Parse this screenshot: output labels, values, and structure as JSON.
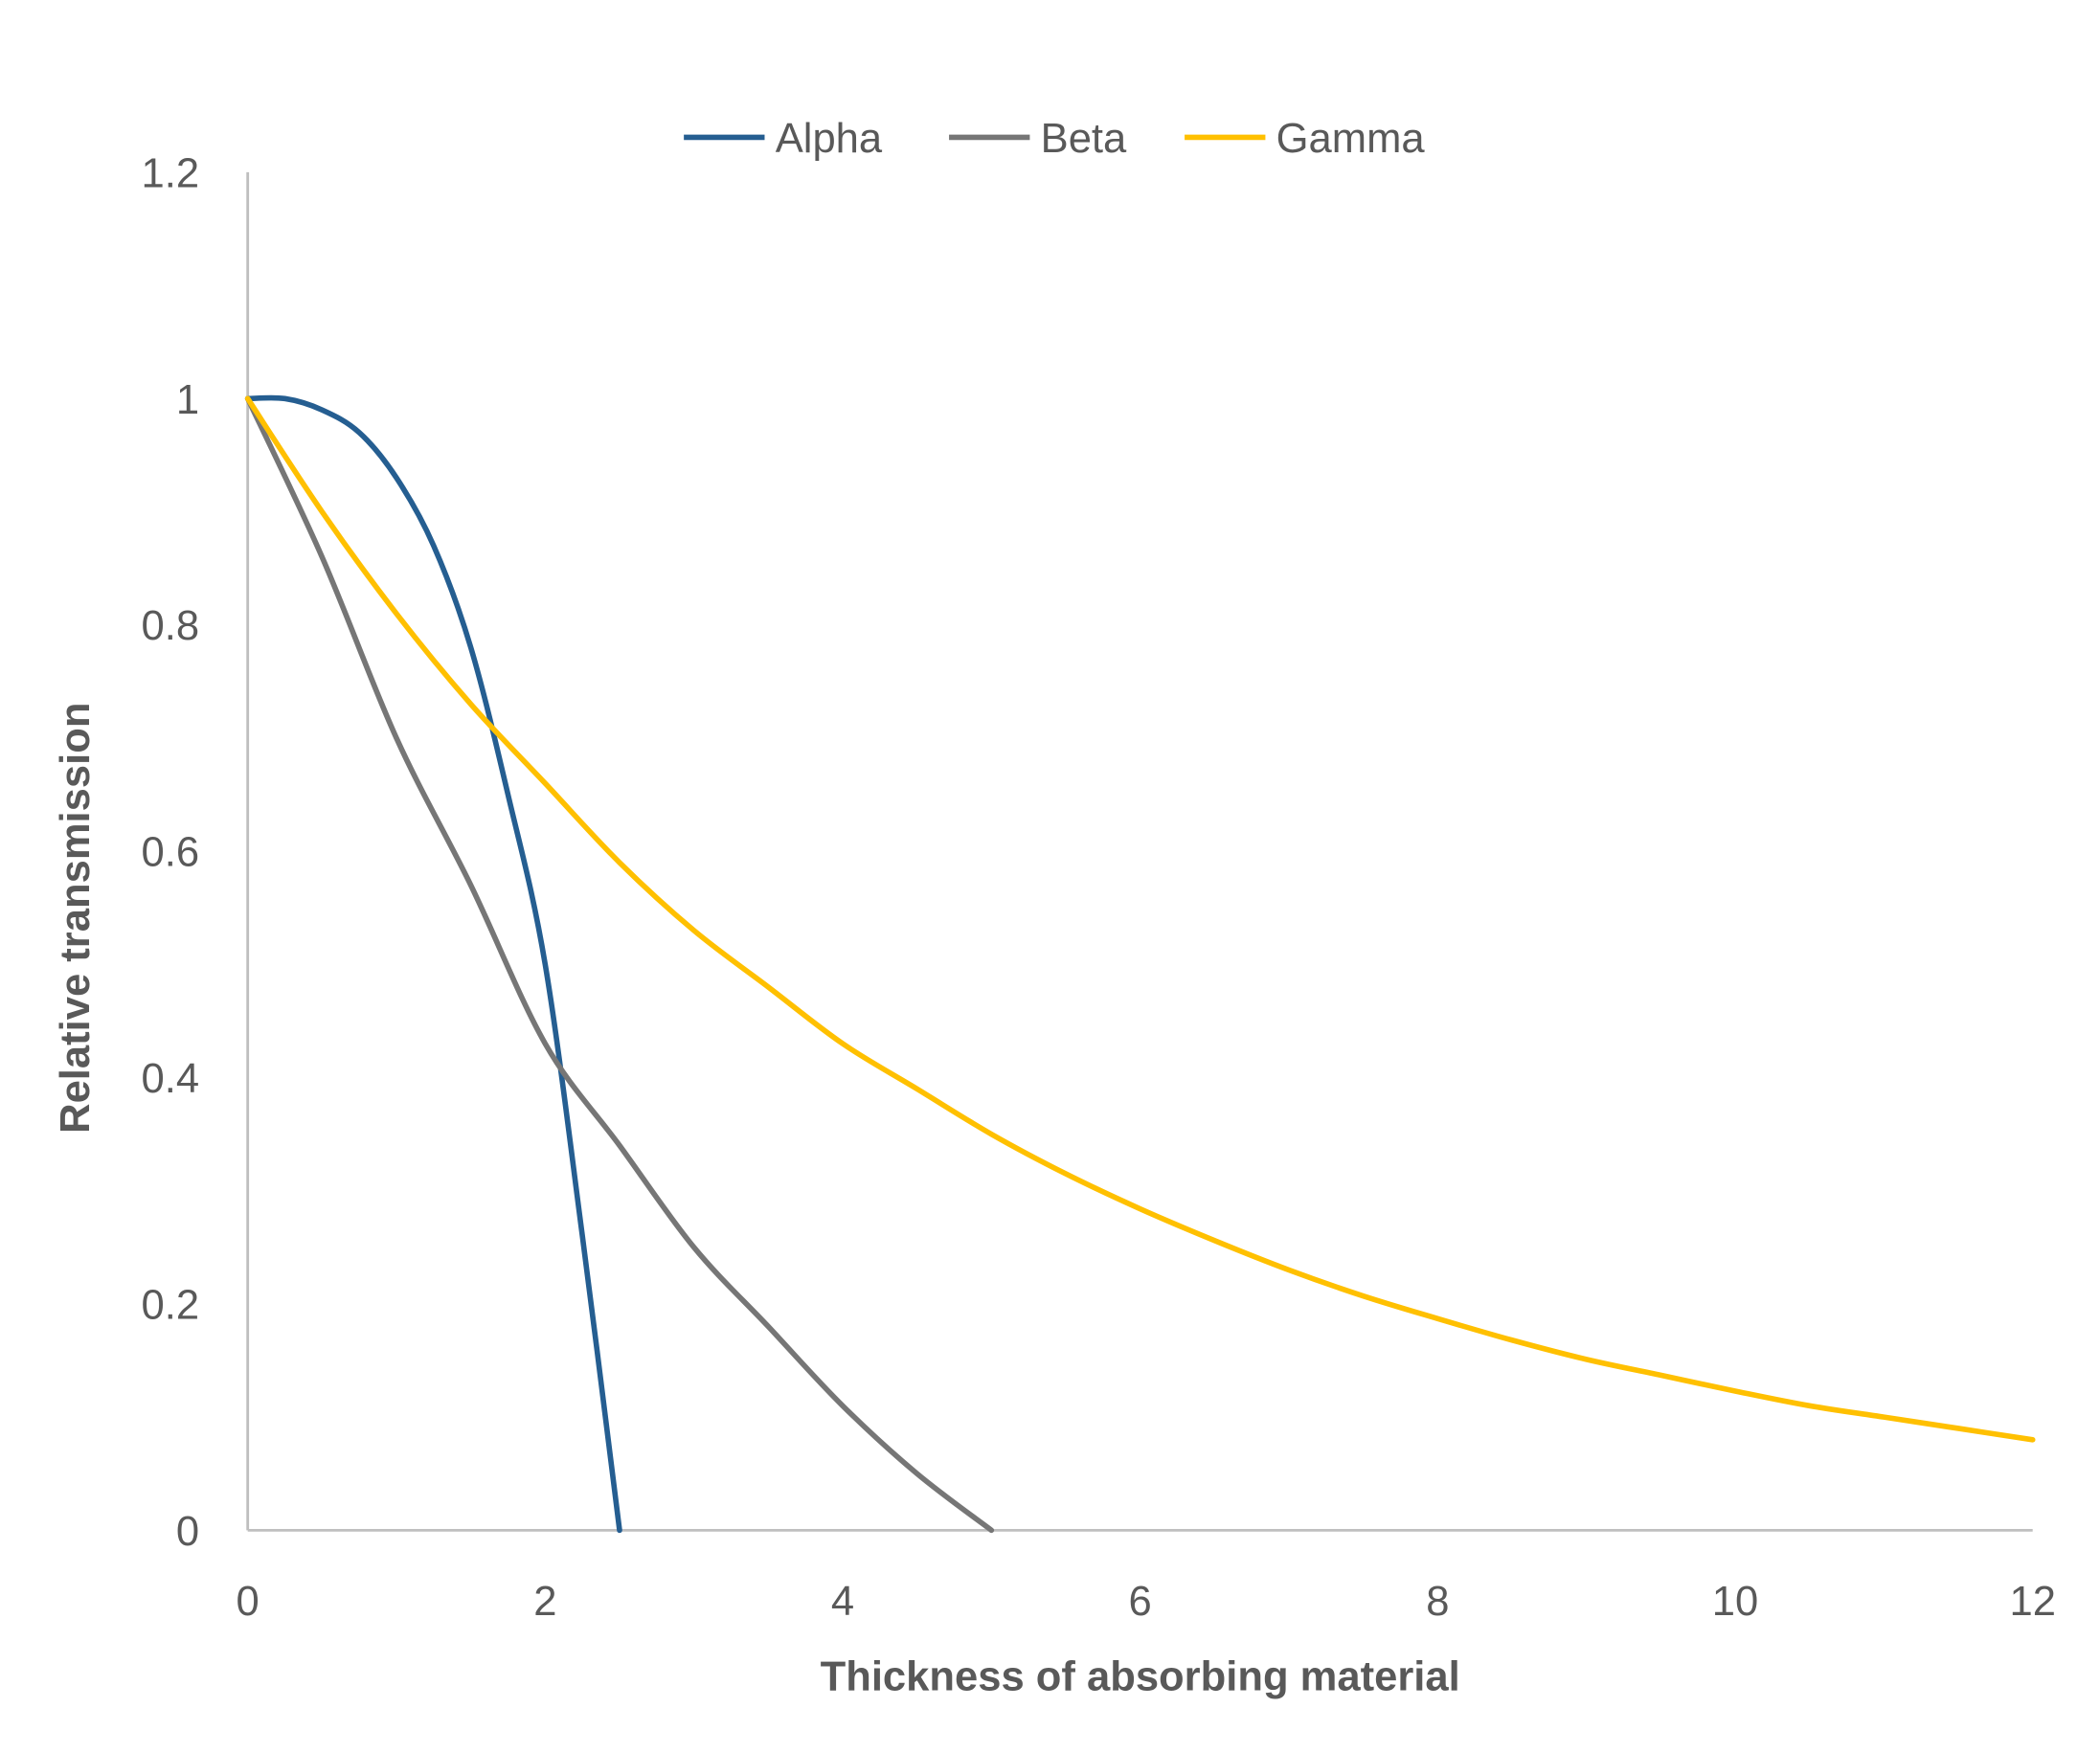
{
  "chart_data": {
    "type": "line",
    "title": "",
    "xlabel": "Thickness of absorbing material",
    "ylabel": "Relative transmission",
    "xlim": [
      0,
      12
    ],
    "ylim": [
      0,
      1.2
    ],
    "xticks": [
      "0",
      "2",
      "4",
      "6",
      "8",
      "10",
      "12"
    ],
    "yticks": [
      "0",
      "0.2",
      "0.4",
      "0.6",
      "0.8",
      "1",
      "1.2"
    ],
    "grid": false,
    "legend": "top",
    "series": [
      {
        "name": "Alpha",
        "color": "#255E91",
        "x": [
          0,
          0.25,
          0.5,
          0.75,
          1,
          1.25,
          1.5,
          1.75,
          2,
          2.25,
          2.5
        ],
        "y": [
          1,
          1,
          0.99,
          0.97,
          0.93,
          0.87,
          0.78,
          0.65,
          0.5,
          0.26,
          0
        ]
      },
      {
        "name": "Beta",
        "color": "#767676",
        "x": [
          0,
          0.5,
          1,
          1.5,
          2,
          2.5,
          3,
          3.5,
          4,
          4.5,
          5
        ],
        "y": [
          1,
          0.86,
          0.7,
          0.57,
          0.43,
          0.34,
          0.25,
          0.18,
          0.11,
          0.05,
          0
        ]
      },
      {
        "name": "Gamma",
        "color": "#FFC000",
        "x": [
          0,
          0.5,
          1,
          1.5,
          2,
          2.5,
          3,
          3.5,
          4,
          4.5,
          5,
          5.5,
          6,
          6.5,
          7,
          7.5,
          8,
          8.5,
          9,
          9.5,
          10,
          10.5,
          11,
          11.5,
          12
        ],
        "y": [
          1,
          0.9,
          0.81,
          0.73,
          0.66,
          0.59,
          0.53,
          0.48,
          0.43,
          0.39,
          0.35,
          0.315,
          0.284,
          0.256,
          0.23,
          0.207,
          0.187,
          0.168,
          0.151,
          0.137,
          0.123,
          0.11,
          0.1,
          0.09,
          0.08
        ]
      }
    ]
  }
}
